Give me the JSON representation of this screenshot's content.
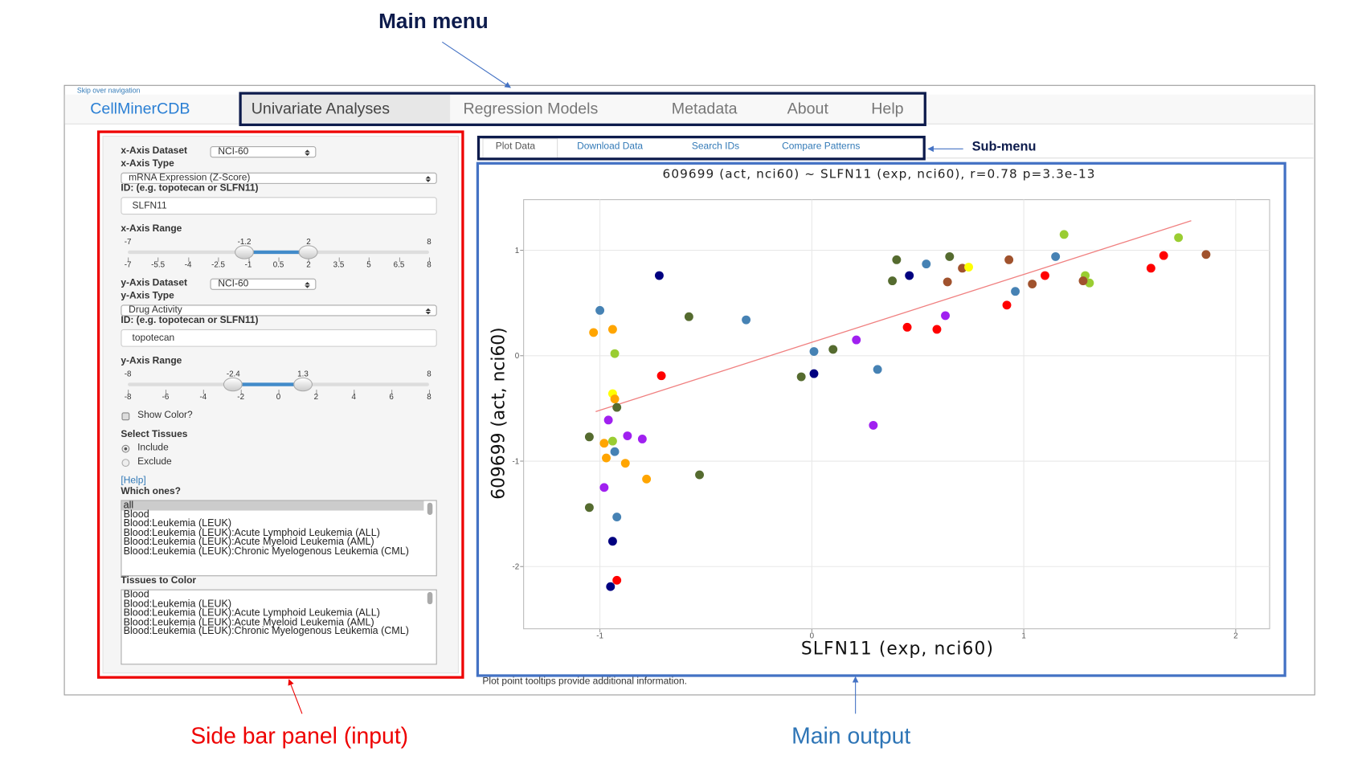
{
  "annotations": {
    "main_menu": "Main menu",
    "sub_menu": "Sub-menu",
    "side_bar": "Side bar panel (input)",
    "main_output": "Main output"
  },
  "app": {
    "skip_link": "Skip over navigation",
    "brand": "CellMinerCDB",
    "menu": [
      "Univariate Analyses",
      "Regression Models",
      "Metadata",
      "About",
      "Help"
    ],
    "submenu": [
      "Plot Data",
      "Download Data",
      "Search IDs",
      "Compare Patterns"
    ],
    "footnote": "Plot point tooltips provide additional information."
  },
  "sidebar": {
    "x_dataset_label": "x-Axis Dataset",
    "x_dataset": "NCI-60",
    "x_type_label": "x-Axis Type",
    "x_type": "mRNA Expression (Z-Score)",
    "x_id_label": "ID: (e.g. topotecan or SLFN11)",
    "x_id": "SLFN11",
    "x_range_label": "x-Axis Range",
    "x_range": {
      "min": -7,
      "max": 8,
      "from": -1.2,
      "to": 2,
      "ticks": [
        -7,
        -5.5,
        -4,
        -2.5,
        -1,
        0.5,
        2,
        3.5,
        5,
        6.5,
        8
      ]
    },
    "y_dataset_label": "y-Axis Dataset",
    "y_dataset": "NCI-60",
    "y_type_label": "y-Axis Type",
    "y_type": "Drug Activity",
    "y_id_label": "ID: (e.g. topotecan or SLFN11)",
    "y_id": "topotecan",
    "y_range_label": "y-Axis Range",
    "y_range": {
      "min": -8,
      "max": 8,
      "from": -2.4,
      "to": 1.3,
      "ticks": [
        -8,
        -6,
        -4,
        -2,
        0,
        2,
        4,
        6,
        8
      ]
    },
    "show_color": "Show Color?",
    "select_tissues": "Select Tissues",
    "include": "Include",
    "exclude": "Exclude",
    "help": "[Help]",
    "which_ones": "Which ones?",
    "which_list": [
      "all",
      "Blood",
      "Blood:Leukemia (LEUK)",
      "Blood:Leukemia (LEUK):Acute Lymphoid Leukemia (ALL)",
      "Blood:Leukemia (LEUK):Acute Myeloid Leukemia (AML)",
      "Blood:Leukemia (LEUK):Chronic Myelogenous Leukemia (CML)"
    ],
    "tissues_to_color": "Tissues to Color",
    "color_list": [
      "Blood",
      "Blood:Leukemia (LEUK)",
      "Blood:Leukemia (LEUK):Acute Lymphoid Leukemia (ALL)",
      "Blood:Leukemia (LEUK):Acute Myeloid Leukemia (AML)",
      "Blood:Leukemia (LEUK):Chronic Myelogenous Leukemia (CML)"
    ]
  },
  "chart_data": {
    "type": "scatter",
    "title": "609699 (act, nci60) ~ SLFN11 (exp, nci60), r=0.78 p=3.3e-13",
    "x_label": "SLFN11 (exp, nci60)",
    "y_label": "609699 (act, nci60)",
    "x": [
      -0.72,
      -1.0,
      -1.03,
      -0.94,
      -0.93,
      -0.58,
      -0.31,
      -0.71,
      -0.94,
      -0.93,
      -0.92,
      -0.96,
      -1.05,
      -0.87,
      -0.8,
      -0.98,
      -0.94,
      -0.93,
      -0.97,
      -0.88,
      -0.78,
      -0.98,
      -0.53,
      -1.05,
      -0.92,
      -0.94,
      -0.92,
      -0.95,
      0.01,
      0.1,
      0.21,
      -0.05,
      0.01,
      0.31,
      0.29,
      0.45,
      0.59,
      0.63,
      0.4,
      0.38,
      0.46,
      0.54,
      0.65,
      0.64,
      0.71,
      0.74,
      0.93,
      0.96,
      1.04,
      1.1,
      0.92,
      1.15,
      1.19,
      1.29,
      1.31,
      1.28,
      1.6,
      1.66,
      1.73,
      1.86
    ],
    "y": [
      0.76,
      0.43,
      0.22,
      0.25,
      0.02,
      0.37,
      0.34,
      -0.19,
      -0.36,
      -0.41,
      -0.49,
      -0.61,
      -0.77,
      -0.76,
      -0.79,
      -0.83,
      -0.81,
      -0.91,
      -0.97,
      -1.02,
      -1.17,
      -1.25,
      -1.13,
      -1.44,
      -1.53,
      -1.76,
      -2.13,
      -2.19,
      0.04,
      0.06,
      0.15,
      -0.2,
      -0.17,
      -0.13,
      -0.66,
      0.27,
      0.25,
      0.38,
      0.91,
      0.71,
      0.76,
      0.87,
      0.94,
      0.7,
      0.83,
      0.84,
      0.91,
      0.61,
      0.68,
      0.76,
      0.48,
      0.94,
      1.15,
      0.76,
      0.69,
      0.71,
      0.83,
      0.95,
      1.12,
      0.96
    ],
    "colors": [
      "#000080",
      "#4682b4",
      "#ffa500",
      "#ffa500",
      "#9acd32",
      "#556b2f",
      "#4682b4",
      "#ff0000",
      "#ffff00",
      "#ffa500",
      "#556b2f",
      "#a020f0",
      "#556b2f",
      "#a020f0",
      "#a020f0",
      "#ffa500",
      "#9acd32",
      "#4682b4",
      "#ffa500",
      "#ffa500",
      "#ffa500",
      "#a020f0",
      "#556b2f",
      "#556b2f",
      "#4682b4",
      "#000080",
      "#ff0000",
      "#000080",
      "#4682b4",
      "#556b2f",
      "#a020f0",
      "#556b2f",
      "#000080",
      "#4682b4",
      "#a020f0",
      "#ff0000",
      "#ff0000",
      "#a020f0",
      "#556b2f",
      "#556b2f",
      "#000080",
      "#4682b4",
      "#556b2f",
      "#a0522d",
      "#a0522d",
      "#ffff00",
      "#a0522d",
      "#4682b4",
      "#a0522d",
      "#ff0000",
      "#ff0000",
      "#4682b4",
      "#9acd32",
      "#9acd32",
      "#9acd32",
      "#a0522d",
      "#ff0000",
      "#ff0000",
      "#9acd32",
      "#a0522d"
    ],
    "fit_line": {
      "x": [
        -1.02,
        1.79
      ],
      "y": [
        -0.53,
        1.28
      ],
      "color": "#f08080"
    },
    "xlim": [
      -1.36,
      2.16
    ],
    "ylim": [
      -2.59,
      1.48
    ],
    "xticks": [
      -1,
      0,
      1,
      2
    ],
    "yticks": [
      -2,
      -1,
      0,
      1
    ],
    "grid": true
  }
}
